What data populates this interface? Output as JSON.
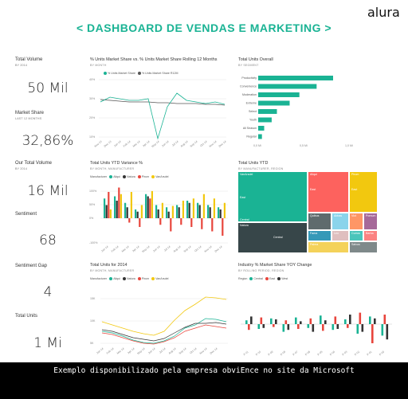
{
  "header": {
    "title": "< DASHBOARD DE VENDAS E MARKETING >",
    "logo": "alura"
  },
  "kpis": [
    {
      "label": "Total Volume",
      "sub": "BY 2014",
      "value": "50 Mil"
    },
    {
      "label": "Market Share",
      "sub": "LAST 12 MONTHS",
      "value": "32,86%"
    },
    {
      "label": "Our Total Volume",
      "sub": "BY 2014",
      "value": "16 Mil"
    },
    {
      "label": "Sentiment",
      "sub": "",
      "value": "68"
    },
    {
      "label": "Sentiment Gap",
      "sub": "",
      "value": "4"
    },
    {
      "label": "Total Units",
      "sub": "",
      "value": "1 Mi"
    }
  ],
  "panels": {
    "market_share": {
      "title": "% Units Market Share vs. % Units Market Share Rolling 12 Months",
      "sub": "BY MONTH",
      "legend": [
        "% Units Market Share",
        "% Units Market Share R12M"
      ],
      "colors": [
        "#1ab394",
        "#555555"
      ],
      "yticks": [
        "40%",
        "30%",
        "20%",
        "10%"
      ],
      "xticks": [
        "Nov-13",
        "Dec-13",
        "Jan-14",
        "Feb-14",
        "Mar-14",
        "Apr-14",
        "May-14",
        "Jun-14",
        "Jul-14",
        "Aug-14",
        "Sep-14",
        "Oct-14",
        "Nov-14",
        "Dec-14"
      ]
    },
    "total_units_overall": {
      "title": "Total Units Overall",
      "sub": "BY SEGMENT",
      "categories": [
        "Productivity",
        "Convenience",
        "Moderation",
        "Extreme",
        "Select",
        "Youth",
        "All Season",
        "Regular"
      ],
      "values": [
        100,
        78,
        55,
        42,
        25,
        18,
        8,
        5
      ],
      "xticks": [
        "0,0 Mi",
        "0,5 Mi",
        "1,0 Mi"
      ],
      "color": "#1ab394"
    },
    "ytd_variance": {
      "title": "Total Units YTD Variance %",
      "sub": "BY MONTH, MANUFACTURER",
      "legend_label": "Manufacturer",
      "legend": [
        "Aliqui",
        "Natura",
        "Pirum",
        "VanArsdel"
      ],
      "colors": [
        "#1ab394",
        "#333333",
        "#e8453c",
        "#f2c80f"
      ],
      "yticks": [
        "100%",
        "50%",
        "0%",
        "-100%"
      ],
      "xticks": [
        "Jan-14",
        "Feb-14",
        "Mar-14",
        "Apr-14",
        "May-14",
        "Jun-14",
        "Jul-14",
        "Aug-14",
        "Sep-14",
        "Oct-14",
        "Nov-14",
        "Dec-14"
      ]
    },
    "total_units_ytd": {
      "title": "Total Units YTD",
      "sub": "BY MANUFACTURER, REGION",
      "cells": [
        {
          "label": "VanArsdel",
          "sub": "East",
          "color": "#1ab394"
        },
        {
          "label": "Central",
          "sub": "",
          "color": "#1ab394"
        },
        {
          "label": "Aliqui",
          "sub": "East",
          "color": "#fd625e"
        },
        {
          "label": "Pirum",
          "sub": "East",
          "color": "#f2c80f"
        },
        {
          "label": "Natura",
          "sub": "",
          "color": "#374649"
        },
        {
          "label": "Central",
          "sub": "",
          "color": "#374649"
        },
        {
          "label": "Quibus",
          "sub": "",
          "color": "#5f6b6d"
        },
        {
          "label": "Abbas",
          "sub": "",
          "color": "#8ad4eb"
        },
        {
          "label": "Vict",
          "sub": "",
          "color": "#fe9666"
        },
        {
          "label": "Pomum",
          "sub": "",
          "color": "#a66999"
        },
        {
          "label": "Fama",
          "sub": "",
          "color": "#3599b8"
        },
        {
          "label": "Leo",
          "sub": "",
          "color": "#dfbfbf"
        },
        {
          "label": "Currus",
          "sub": "",
          "color": "#4ac5bb"
        },
        {
          "label": "Barba",
          "sub": "",
          "color": "#fb8281"
        },
        {
          "label": "Palma",
          "sub": "",
          "color": "#f4d25a"
        },
        {
          "label": "Salvus",
          "sub": "",
          "color": "#7f898a"
        }
      ]
    },
    "units_2014": {
      "title": "Total Units for 2014",
      "sub": "BY MONTH, MANUFACTURER",
      "legend_label": "Manufacturer",
      "legend": [
        "Aliqui",
        "Natura",
        "Pirum",
        "VanArsdel"
      ],
      "colors": [
        "#1ab394",
        "#333333",
        "#e8453c",
        "#f2c80f"
      ],
      "yticks": [
        "15K",
        "10K",
        "5K"
      ],
      "xticks": [
        "Jan-14",
        "Feb-14",
        "Mar-14",
        "Apr-14",
        "May-14",
        "Jun-14",
        "Jul-14",
        "Aug-14",
        "Sep-14",
        "Oct-14",
        "Nov-14",
        "Dec-14"
      ]
    },
    "industry_share": {
      "title": "Industry % Market Share YOY Change",
      "sub": "BY ROLLING PERIOD, REGION",
      "legend_label": "Region",
      "legend": [
        "Central",
        "East",
        "West"
      ],
      "colors": [
        "#1ab394",
        "#e8453c",
        "#333333"
      ],
      "xticks": [
        "P-11",
        "P-10",
        "P-09",
        "P-08",
        "P-07",
        "P-06",
        "P-05",
        "P-04",
        "P-03",
        "P-02",
        "P-01",
        "P-00"
      ]
    }
  },
  "footer": {
    "text": "Exemplo disponibilizado pela empresa obviEnce no site da Microsoft"
  }
}
